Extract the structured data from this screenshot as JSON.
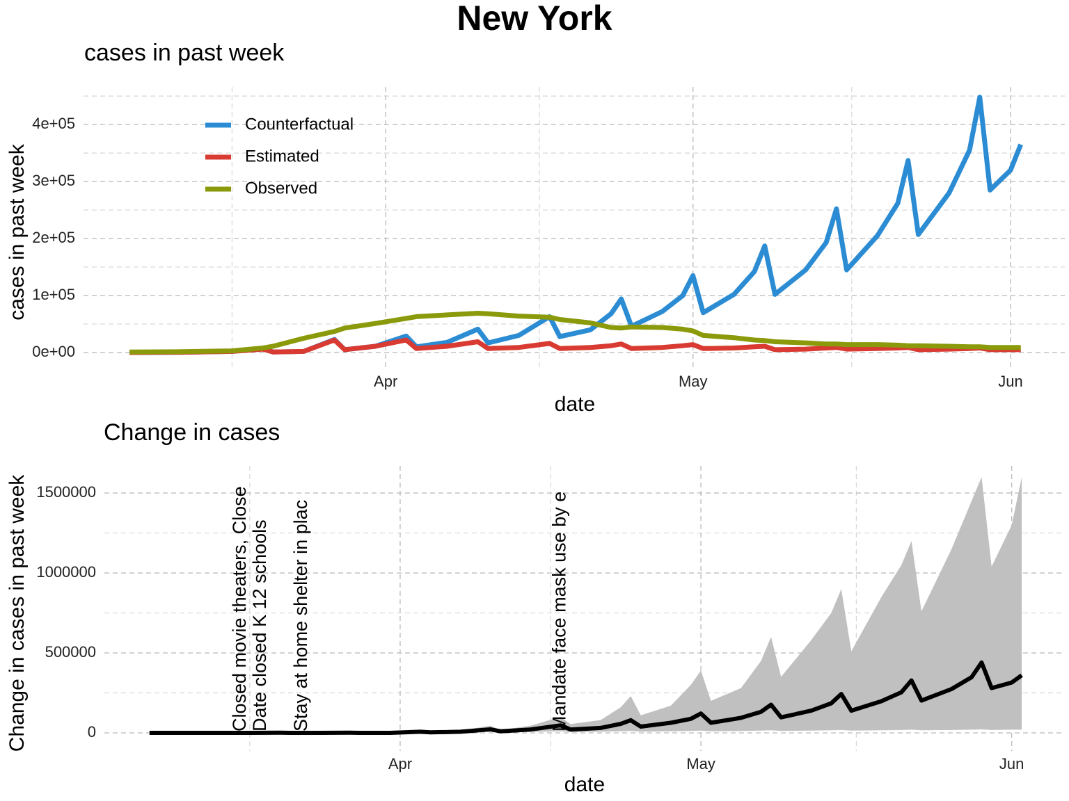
{
  "title": "New York",
  "chart_data": [
    {
      "type": "line",
      "subtitle": "cases in past week",
      "x_label": "date",
      "y_label": "cases in past week",
      "x": [
        67,
        72,
        77,
        80,
        81,
        84,
        87,
        88,
        91,
        94,
        95,
        98,
        101,
        102,
        105,
        108,
        109,
        112,
        114,
        115,
        116,
        119,
        121,
        122,
        123,
        126,
        128,
        129,
        130,
        133,
        135,
        136,
        137,
        140,
        142,
        143,
        144,
        147,
        149,
        150,
        151,
        153,
        154
      ],
      "series": [
        {
          "name": "Counterfactual",
          "color": "#2b8cd4",
          "values": [
            0,
            500,
            2000,
            7000,
            1000,
            2000,
            23000,
            5000,
            11000,
            29000,
            10000,
            18000,
            41000,
            17000,
            30000,
            63000,
            28000,
            40000,
            68000,
            94000,
            46000,
            72000,
            100000,
            135000,
            70000,
            102000,
            142000,
            187000,
            102000,
            145000,
            193000,
            252000,
            145000,
            205000,
            262000,
            337000,
            207000,
            280000,
            355000,
            448000,
            285000,
            320000,
            365000
          ]
        },
        {
          "name": "Estimated",
          "color": "#d93a32",
          "values": [
            0,
            500,
            2000,
            6000,
            1000,
            2000,
            22000,
            5000,
            11000,
            22000,
            7000,
            11000,
            19000,
            7000,
            9000,
            16000,
            7000,
            9000,
            12000,
            15000,
            7000,
            9000,
            12000,
            14000,
            7000,
            8000,
            10000,
            11000,
            5000,
            6000,
            8000,
            9000,
            6000,
            7000,
            8000,
            9000,
            5000,
            6000,
            7000,
            8000,
            5000,
            5000,
            5000
          ]
        },
        {
          "name": "Observed",
          "color": "#8a9a0a",
          "values": [
            1000,
            1500,
            3000,
            8000,
            11000,
            25000,
            37000,
            43000,
            51000,
            60000,
            63000,
            66000,
            69000,
            68000,
            64000,
            62000,
            58000,
            52000,
            44000,
            43000,
            45000,
            44000,
            41000,
            38000,
            30000,
            26000,
            22000,
            21000,
            19000,
            17000,
            15000,
            15000,
            14000,
            14000,
            13000,
            12000,
            12000,
            11000,
            10000,
            10000,
            9000,
            9000,
            9000
          ]
        }
      ],
      "xlim": [
        62.5,
        158.3
      ],
      "xticks": [
        {
          "value": 92,
          "label": "Apr"
        },
        {
          "value": 122,
          "label": "May"
        },
        {
          "value": 153,
          "label": "Jun"
        }
      ],
      "minor_xticks": [
        77,
        107,
        137.5
      ],
      "ylim": [
        -28000,
        466000
      ],
      "yticks": [
        {
          "value": 0,
          "label": "0e+00"
        },
        {
          "value": 100000,
          "label": "1e+05"
        },
        {
          "value": 200000,
          "label": "2e+05"
        },
        {
          "value": 300000,
          "label": "3e+05"
        },
        {
          "value": 400000,
          "label": "4e+05"
        }
      ],
      "minor_yticks": [
        50000,
        150000,
        250000,
        350000,
        450000
      ],
      "grid": true,
      "legend": "top-left"
    },
    {
      "type": "line",
      "subtitle": "Change in cases",
      "x_label": "date",
      "y_label": "Change in cases in past week",
      "x": [
        67,
        72,
        77,
        80,
        81,
        84,
        87,
        88,
        91,
        94,
        95,
        98,
        101,
        102,
        105,
        108,
        109,
        112,
        114,
        115,
        116,
        119,
        121,
        122,
        123,
        126,
        128,
        129,
        130,
        133,
        135,
        136,
        137,
        140,
        142,
        143,
        144,
        147,
        149,
        150,
        151,
        153,
        154
      ],
      "band": {
        "color": "#c0c0c0",
        "upper": [
          0,
          0,
          0,
          1000,
          0,
          0,
          1000,
          0,
          0,
          10000,
          5000,
          15000,
          45000,
          18000,
          45000,
          100000,
          55000,
          80000,
          160000,
          230000,
          110000,
          170000,
          300000,
          390000,
          200000,
          280000,
          450000,
          600000,
          350000,
          580000,
          750000,
          900000,
          510000,
          850000,
          1050000,
          1200000,
          760000,
          1150000,
          1450000,
          1600000,
          1040000,
          1300000,
          1600000
        ],
        "lower": [
          0,
          0,
          0,
          500,
          0,
          0,
          500,
          0,
          0,
          3000,
          1000,
          3000,
          8000,
          4000,
          6000,
          10000,
          5000,
          7000,
          10000,
          12000,
          8000,
          10000,
          12000,
          14000,
          10000,
          12000,
          14000,
          16000,
          12000,
          14000,
          16000,
          18000,
          14000,
          16000,
          18000,
          20000,
          16000,
          18000,
          20000,
          22000,
          18000,
          20000,
          20000
        ]
      },
      "series": [
        {
          "color": "#000000",
          "values": [
            0,
            0,
            0,
            1000,
            0,
            0,
            1000,
            0,
            0,
            7000,
            3000,
            7000,
            22000,
            10000,
            21000,
            47000,
            21000,
            31000,
            56000,
            79000,
            39000,
            63000,
            88000,
            121000,
            63000,
            94000,
            132000,
            176000,
            97000,
            139000,
            185000,
            243000,
            139000,
            198000,
            254000,
            328000,
            202000,
            274000,
            348000,
            440000,
            280000,
            315000,
            360000
          ]
        }
      ],
      "annotations": [
        {
          "text": "Closed movie theaters, Close",
          "x": 76.1
        },
        {
          "text": "Date closed K 12 schools",
          "x": 78.1
        },
        {
          "text": "Stay at home  shelter in plac",
          "x": 82.2
        },
        {
          "text": "Mandate face mask use by e",
          "x": 108
        }
      ],
      "xlim": [
        62.5,
        158.3
      ],
      "xticks": [
        {
          "value": 92,
          "label": "Apr"
        },
        {
          "value": 122,
          "label": "May"
        },
        {
          "value": 153,
          "label": "Jun"
        }
      ],
      "minor_xticks": [
        77,
        107,
        137.5
      ],
      "ylim": [
        -113000,
        1670000
      ],
      "yticks": [
        0,
        500000,
        1000000,
        1500000
      ],
      "minor_yticks": [
        250000,
        750000,
        1250000
      ],
      "grid": true
    }
  ]
}
